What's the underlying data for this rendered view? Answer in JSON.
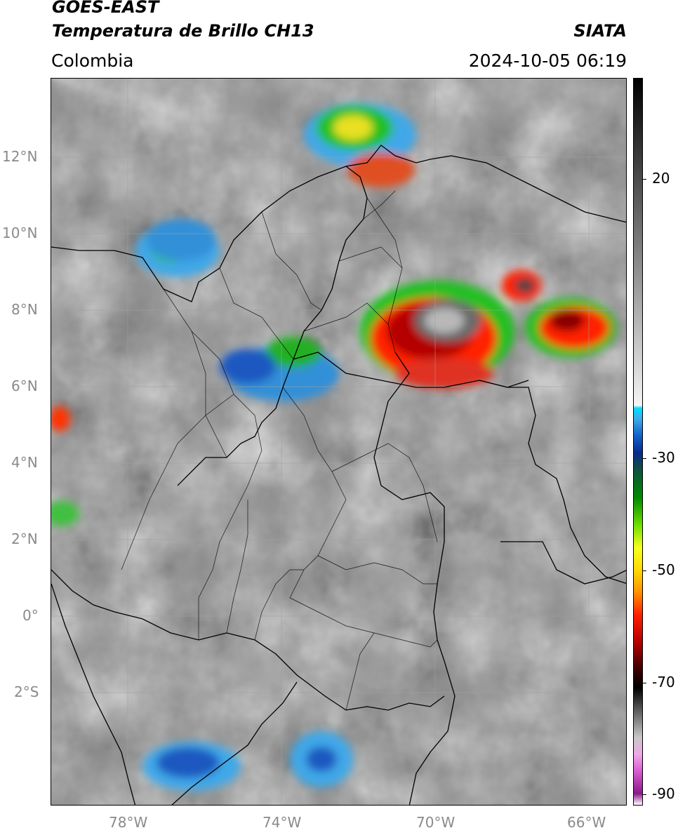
{
  "header": {
    "satellite": "GOES-EAST",
    "product": "Temperatura de Brillo CH13",
    "region": "Colombia",
    "agency": "SIATA",
    "datetime": "2024-10-05 06:19"
  },
  "map": {
    "lat_ticks": [
      "12°N",
      "10°N",
      "8°N",
      "6°N",
      "4°N",
      "2°N",
      "0°",
      "2°S"
    ],
    "lon_ticks": [
      "78°W",
      "74°W",
      "70°W",
      "66°W"
    ],
    "lon_range": [
      -80,
      -65
    ],
    "lat_range": [
      -4.9,
      14
    ]
  },
  "colorbar": {
    "tick_labels": [
      "20",
      "-30",
      "-50",
      "-70",
      "-90"
    ],
    "tick_values": [
      20,
      -30,
      -50,
      -70,
      -90
    ],
    "range": [
      -92,
      38
    ],
    "stops": [
      {
        "v": -92,
        "c": "#ffffff"
      },
      {
        "v": -90,
        "c": "#8b1a8b"
      },
      {
        "v": -86,
        "c": "#d85cd0"
      },
      {
        "v": -83,
        "c": "#f0a8e8"
      },
      {
        "v": -80,
        "c": "#c8c8c8"
      },
      {
        "v": -75,
        "c": "#5a5a5a"
      },
      {
        "v": -71,
        "c": "#000000"
      },
      {
        "v": -67,
        "c": "#4a0000"
      },
      {
        "v": -63,
        "c": "#b40000"
      },
      {
        "v": -58,
        "c": "#ff2000"
      },
      {
        "v": -54,
        "c": "#ff9000"
      },
      {
        "v": -50,
        "c": "#ffd800"
      },
      {
        "v": -46,
        "c": "#f8ff20"
      },
      {
        "v": -42,
        "c": "#70e000"
      },
      {
        "v": -37,
        "c": "#008a00"
      },
      {
        "v": -32,
        "c": "#105040"
      },
      {
        "v": -29,
        "c": "#0a2a8c"
      },
      {
        "v": -26,
        "c": "#1060c8"
      },
      {
        "v": -23,
        "c": "#40a8e8"
      },
      {
        "v": -21,
        "c": "#00e0ff"
      },
      {
        "v": -20.5,
        "c": "#f4f4f4"
      },
      {
        "v": 38,
        "c": "#000000"
      }
    ]
  },
  "colors": {
    "background_gray": "#8c8c8c",
    "grid": "#a0a0a0",
    "border": "#000000",
    "tick_text": "#8a8a8a"
  }
}
